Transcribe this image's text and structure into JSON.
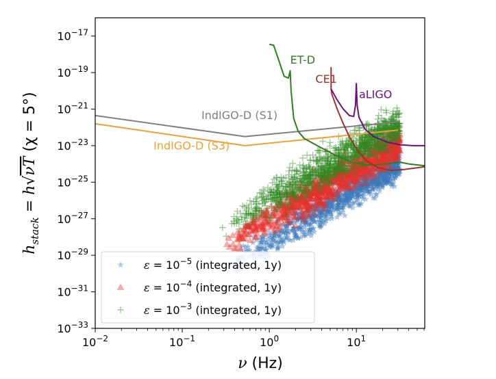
{
  "chart_data": {
    "type": "scatter",
    "title": "",
    "xlabel": "ν (Hz)",
    "ylabel": "h_stack = h√(νT) (χ = 5°)",
    "xscale": "log",
    "yscale": "log",
    "xlim_log10": [
      -2,
      1.786
    ],
    "ylim_log10": [
      -33,
      -16
    ],
    "grid": false,
    "legend_position": "lower-left",
    "x_ticks": [
      {
        "log10": -2,
        "base": "10",
        "exp": "−2"
      },
      {
        "log10": -1,
        "base": "10",
        "exp": "−1"
      },
      {
        "log10": 0,
        "base": "10",
        "exp": "0"
      },
      {
        "log10": 1,
        "base": "10",
        "exp": "1"
      }
    ],
    "y_ticks": [
      {
        "log10": -17,
        "base": "10",
        "exp": "−17"
      },
      {
        "log10": -19,
        "base": "10",
        "exp": "−19"
      },
      {
        "log10": -21,
        "base": "10",
        "exp": "−21"
      },
      {
        "log10": -23,
        "base": "10",
        "exp": "−23"
      },
      {
        "log10": -25,
        "base": "10",
        "exp": "−25"
      },
      {
        "log10": -27,
        "base": "10",
        "exp": "−27"
      },
      {
        "log10": -29,
        "base": "10",
        "exp": "−29"
      },
      {
        "log10": -31,
        "base": "10",
        "exp": "−31"
      },
      {
        "log10": -33,
        "base": "10",
        "exp": "−33"
      }
    ],
    "curves": [
      {
        "name": "IndIGO-D (S1)",
        "color": "#7f7f7f",
        "points_log10": [
          [
            -2,
            -21.35
          ],
          [
            -0.28,
            -22.5
          ],
          [
            1.48,
            -21.7
          ]
        ],
        "label_at_log10": [
          -0.78,
          -21.55
        ]
      },
      {
        "name": "IndIGO-D (S3)",
        "color": "#f0a030",
        "points_log10": [
          [
            -2,
            -21.8
          ],
          [
            -0.28,
            -23.0
          ],
          [
            1.48,
            -22.15
          ]
        ],
        "label_at_log10": [
          -1.33,
          -23.2
        ]
      },
      {
        "name": "ET-D",
        "color": "#2e7d1e",
        "points_log10": [
          [
            0.0,
            -17.45
          ],
          [
            0.05,
            -17.5
          ],
          [
            0.1,
            -18.2
          ],
          [
            0.17,
            -19.2
          ],
          [
            0.22,
            -19.3
          ],
          [
            0.24,
            -18.9
          ],
          [
            0.25,
            -20.0
          ],
          [
            0.28,
            -21.5
          ],
          [
            0.33,
            -22.2
          ],
          [
            0.4,
            -22.6
          ],
          [
            0.55,
            -23.0
          ],
          [
            0.75,
            -23.5
          ],
          [
            0.95,
            -23.9
          ],
          [
            1.1,
            -24.05
          ],
          [
            1.2,
            -24.05
          ],
          [
            1.35,
            -24.0
          ],
          [
            1.5,
            -23.9
          ],
          [
            1.6,
            -24.0
          ],
          [
            1.786,
            -24.1
          ]
        ],
        "label_at_log10": [
          0.24,
          -18.5
        ]
      },
      {
        "name": "CE1",
        "color": "#a0312a",
        "points_log10": [
          [
            0.71,
            -18.7
          ],
          [
            0.71,
            -19.9
          ],
          [
            0.72,
            -20.2
          ],
          [
            0.78,
            -21.0
          ],
          [
            0.85,
            -21.8
          ],
          [
            0.93,
            -22.6
          ],
          [
            1.02,
            -23.3
          ],
          [
            1.12,
            -23.85
          ],
          [
            1.25,
            -24.2
          ],
          [
            1.4,
            -24.35
          ],
          [
            1.55,
            -24.3
          ],
          [
            1.786,
            -24.15
          ]
        ],
        "label_at_log10": [
          0.53,
          -19.55
        ]
      },
      {
        "name": "aLIGO",
        "color": "#6a0f7d",
        "points_log10": [
          [
            0.71,
            -19.9
          ],
          [
            0.78,
            -20.5
          ],
          [
            0.85,
            -21.0
          ],
          [
            0.92,
            -21.35
          ],
          [
            0.97,
            -21.4
          ],
          [
            0.99,
            -20.8
          ],
          [
            1.0,
            -19.6
          ],
          [
            1.01,
            -20.8
          ],
          [
            1.03,
            -21.45
          ],
          [
            1.1,
            -22.1
          ],
          [
            1.2,
            -22.5
          ],
          [
            1.35,
            -22.8
          ],
          [
            1.5,
            -22.95
          ],
          [
            1.65,
            -23.0
          ],
          [
            1.786,
            -23.0
          ]
        ],
        "label_at_log10": [
          1.03,
          -20.4
        ]
      }
    ],
    "series": [
      {
        "name": "ε = 10⁻⁵ (integrated, 1y)",
        "legend_label": "(integrated, 1y)",
        "exp": "−5",
        "marker": "star",
        "color": "#3a78b8",
        "trend": {
          "x_log10_range": [
            -0.45,
            1.5
          ],
          "y_at_xmin": -29.6,
          "y_at_xmax": -23.9,
          "spread": 0.9
        }
      },
      {
        "name": "ε = 10⁻⁴ (integrated, 1y)",
        "legend_label": "(integrated, 1y)",
        "exp": "−4",
        "marker": "triangle",
        "color": "#e8302a",
        "trend": {
          "x_log10_range": [
            -0.5,
            1.5
          ],
          "y_at_xmin": -28.4,
          "y_at_xmax": -22.8,
          "spread": 0.9
        }
      },
      {
        "name": "ε = 10⁻³ (integrated, 1y)",
        "legend_label": "(integrated, 1y)",
        "exp": "−3",
        "marker": "plus",
        "color": "#2e8a22",
        "trend": {
          "x_log10_range": [
            -0.55,
            1.5
          ],
          "y_at_xmin": -27.5,
          "y_at_xmax": -21.8,
          "spread": 1.0
        }
      }
    ]
  },
  "labels": {
    "xlabel": "ν (Hz)",
    "ylabel_main": "h",
    "ylabel_sub": "stack",
    "ylabel_rest": " = h√",
    "ylabel_over": "νT",
    "ylabel_tail": " (χ = 5°)",
    "legend_prefix": "ε = 10"
  }
}
